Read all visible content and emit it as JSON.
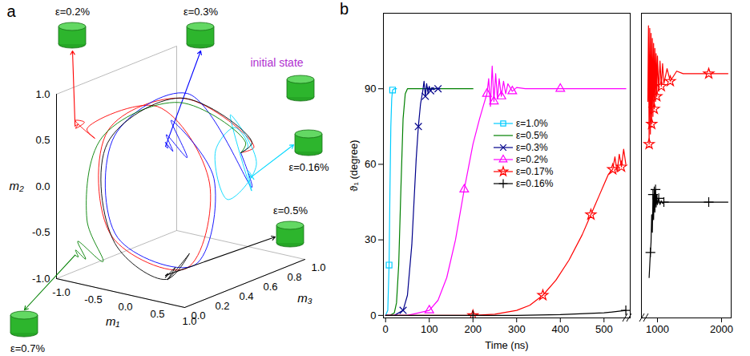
{
  "chart_data": [
    {
      "type": "line3d",
      "title": "a",
      "xlabel": "m₁",
      "ylabel": "m₂",
      "zlabel": "m₃",
      "xlim": [
        -1,
        1
      ],
      "ylim": [
        -1,
        1
      ],
      "zlim": [
        0,
        1
      ],
      "xticks": [
        {
          "value": -1,
          "label": "-1.0"
        },
        -0.5,
        {
          "value": 0,
          "label": "0.0"
        },
        0.5,
        {
          "value": 1,
          "label": "1.0"
        }
      ],
      "yticks": [
        {
          "value": -1,
          "label": "-1.0"
        },
        -0.5,
        {
          "value": 0,
          "label": "0.0"
        },
        0.5,
        {
          "value": 1,
          "label": "1.0"
        }
      ],
      "zticks": [
        {
          "value": 0,
          "label": "0.0"
        },
        0.2,
        0.4,
        0.6,
        0.8,
        {
          "value": 1,
          "label": "1.0"
        }
      ],
      "annotations": [
        {
          "text": "initial state",
          "color": "#b030d0"
        }
      ],
      "series": [
        {
          "name": "ε=0.2%",
          "color": "#ff0000",
          "x": [
            0,
            0.45,
            0.15,
            -0.85,
            -0.7,
            0.5,
            0.92,
            0.2,
            -0.75,
            -0.55,
            -0.8,
            -0.62,
            -0.74,
            -0.68,
            -0.71
          ],
          "y": [
            0,
            0.2,
            0.9,
            0.45,
            -0.65,
            -0.8,
            0.2,
            0.95,
            0.6,
            0.55,
            0.72,
            0.74,
            0.66,
            0.72,
            0.7
          ],
          "z": [
            1,
            0.87,
            0.45,
            0.35,
            0.3,
            0.28,
            0.25,
            0.2,
            0.12,
            0.08,
            0.05,
            0.03,
            0.02,
            0.01,
            0
          ]
        },
        {
          "name": "ε=0.3%",
          "color": "#0000ff",
          "x": [
            0,
            0.4,
            0.1,
            -0.88,
            -0.72,
            0.55,
            0.95,
            0.45,
            0.85,
            0.6,
            0.76,
            0.66,
            0.72,
            0.7
          ],
          "y": [
            0,
            -0.25,
            0.92,
            0.35,
            -0.7,
            -0.78,
            0.25,
            0.85,
            0.55,
            0.78,
            0.64,
            0.73,
            0.68,
            0.7
          ],
          "z": [
            1,
            0.88,
            0.5,
            0.42,
            0.36,
            0.32,
            0.27,
            0.18,
            0.1,
            0.06,
            0.03,
            0.02,
            0.01,
            0
          ]
        },
        {
          "name": "ε=0.16%",
          "color": "#00d8ff",
          "x": [
            0,
            0.15,
            0,
            -0.3,
            0,
            0.45,
            0.1,
            0.6,
            0.75,
            0.62,
            0.72,
            0.69,
            0.71
          ],
          "y": [
            0,
            0.1,
            0.3,
            0,
            -0.45,
            0,
            0.5,
            -0.2,
            0.1,
            -0.08,
            0.04,
            -0.02,
            0
          ],
          "z": [
            1,
            0.98,
            0.95,
            0.95,
            0.89,
            0.89,
            0.86,
            0.77,
            0.66,
            0.78,
            0.69,
            0.72,
            0.71
          ]
        },
        {
          "name": "ε=0.7%",
          "color": "#008000",
          "x": [
            0,
            0.6,
            0.2,
            -0.85,
            -0.9,
            -0.5,
            -0.8,
            -0.62,
            -0.74,
            -0.68,
            -0.71
          ],
          "y": [
            0,
            0.35,
            0.9,
            0.4,
            -0.45,
            -0.8,
            -0.6,
            -0.75,
            -0.66,
            -0.72,
            -0.7
          ],
          "z": [
            1,
            0.72,
            0.38,
            0.3,
            0.2,
            0.12,
            0.07,
            0.04,
            0.02,
            0.01,
            0
          ]
        },
        {
          "name": "ε=0.5%",
          "color": "#000000",
          "x": [
            0,
            0.55,
            0.15,
            -0.88,
            -0.65,
            0.3,
            0.85,
            0.6,
            0.78,
            0.66,
            0.72,
            0.7
          ],
          "y": [
            0,
            0.3,
            0.92,
            0.3,
            -0.72,
            -0.92,
            -0.5,
            -0.8,
            -0.62,
            -0.74,
            -0.68,
            -0.7
          ],
          "z": [
            1,
            0.8,
            0.42,
            0.36,
            0.3,
            0.22,
            0.12,
            0.07,
            0.04,
            0.02,
            0.01,
            0
          ]
        }
      ]
    },
    {
      "type": "line",
      "title": "b",
      "xlabel": "Time (ns)",
      "ylabel": "ϑ₁ (degree)",
      "xlim": [
        -5,
        560
      ],
      "xticks": [
        0,
        100,
        200,
        300,
        400,
        500
      ],
      "ylim": [
        -1,
        120
      ],
      "yticks": [
        0,
        30,
        60,
        90
      ],
      "legend": "center",
      "series": [
        {
          "name": "ε=1.0%",
          "color": "#00ccff",
          "marker": "square",
          "x": [
            0,
            5,
            8,
            10,
            12,
            14,
            16,
            20,
            25
          ],
          "values": [
            0,
            2,
            20,
            50,
            75,
            86,
            89.5,
            90,
            90
          ]
        },
        {
          "name": "ε=0.5%",
          "color": "#008000",
          "marker": "none",
          "x": [
            0,
            10,
            20,
            25,
            30,
            35,
            40,
            45,
            50,
            60,
            80,
            120,
            200
          ],
          "values": [
            0,
            0,
            1,
            5,
            20,
            50,
            78,
            88,
            90,
            90,
            90,
            90,
            90
          ]
        },
        {
          "name": "ε=0.3%",
          "color": "#00008b",
          "marker": "x",
          "x": [
            0,
            20,
            40,
            50,
            60,
            70,
            75,
            80,
            85,
            88,
            91,
            94,
            97,
            100,
            103,
            106,
            110,
            115,
            120,
            125
          ],
          "values": [
            0,
            0,
            2,
            8,
            28,
            62,
            75,
            84,
            89,
            93,
            87,
            92,
            88.5,
            91,
            89.2,
            90.5,
            89.6,
            90.2,
            90,
            90
          ]
        },
        {
          "name": "ε=0.2%",
          "color": "#ff00ff",
          "marker": "triangle",
          "x": [
            0,
            50,
            100,
            120,
            140,
            160,
            180,
            200,
            215,
            225,
            232,
            236,
            240,
            244,
            248,
            252,
            256,
            260,
            265,
            270,
            275,
            280,
            290,
            300,
            320,
            350,
            400,
            450,
            500,
            550
          ],
          "values": [
            0,
            0,
            2,
            6,
            15,
            30,
            50,
            68,
            78,
            84,
            88,
            94,
            83,
            99,
            85,
            96,
            86,
            94,
            87,
            93,
            88,
            92,
            89,
            90.5,
            90,
            90,
            90,
            90,
            90,
            90
          ]
        },
        {
          "name": "ε=0.17%",
          "color": "#ff0000",
          "marker": "star",
          "x": [
            0,
            100,
            200,
            250,
            300,
            330,
            360,
            390,
            420,
            450,
            470,
            490,
            500,
            510,
            520,
            525,
            530,
            535,
            540,
            545,
            550
          ],
          "values": [
            0,
            0,
            0,
            0.5,
            2,
            4,
            8,
            14,
            22,
            32,
            40,
            48,
            52,
            56,
            58,
            63,
            57,
            64,
            59,
            66,
            60
          ]
        },
        {
          "name": "ε=0.16%",
          "color": "#000000",
          "marker": "plus",
          "x": [
            0,
            100,
            200,
            300,
            400,
            500,
            550
          ],
          "values": [
            0,
            0,
            0,
            0,
            0.3,
            1,
            2
          ]
        }
      ]
    },
    {
      "type": "line",
      "xlim": [
        750,
        2150
      ],
      "xticks": [
        1000,
        2000
      ],
      "ylim": [
        -1,
        120
      ],
      "tick_labels": "x",
      "series": [
        {
          "name": "ε=0.17%",
          "color": "#ff0000",
          "marker": "star",
          "x": [
            850,
            860,
            870,
            880,
            890,
            900,
            910,
            920,
            930,
            940,
            950,
            960,
            970,
            980,
            990,
            1000,
            1020,
            1040,
            1060,
            1080,
            1100,
            1150,
            1200,
            1300,
            1400,
            1600,
            1800,
            2000,
            2100
          ],
          "values": [
            85,
            115,
            68,
            114,
            72,
            112,
            76,
            110,
            79,
            108,
            82,
            106,
            85,
            104,
            87,
            103,
            89,
            101,
            91,
            100,
            92,
            98,
            93,
            97,
            96,
            96,
            96,
            96,
            96
          ]
        },
        {
          "name": "ε=0.16%",
          "color": "#000000",
          "marker": "plus",
          "x": [
            870,
            880,
            890,
            900,
            910,
            920,
            930,
            940,
            950,
            960,
            970,
            980,
            990,
            1000,
            1020,
            1040,
            1060,
            1080,
            1100,
            1200,
            1400,
            1600,
            1800,
            2000,
            2100
          ],
          "values": [
            15,
            20,
            25,
            29,
            40,
            33,
            48,
            38,
            51,
            41,
            50,
            43,
            48,
            44,
            46.5,
            44,
            45.5,
            44.5,
            45,
            45,
            45,
            45,
            45,
            45,
            45
          ]
        }
      ]
    }
  ]
}
